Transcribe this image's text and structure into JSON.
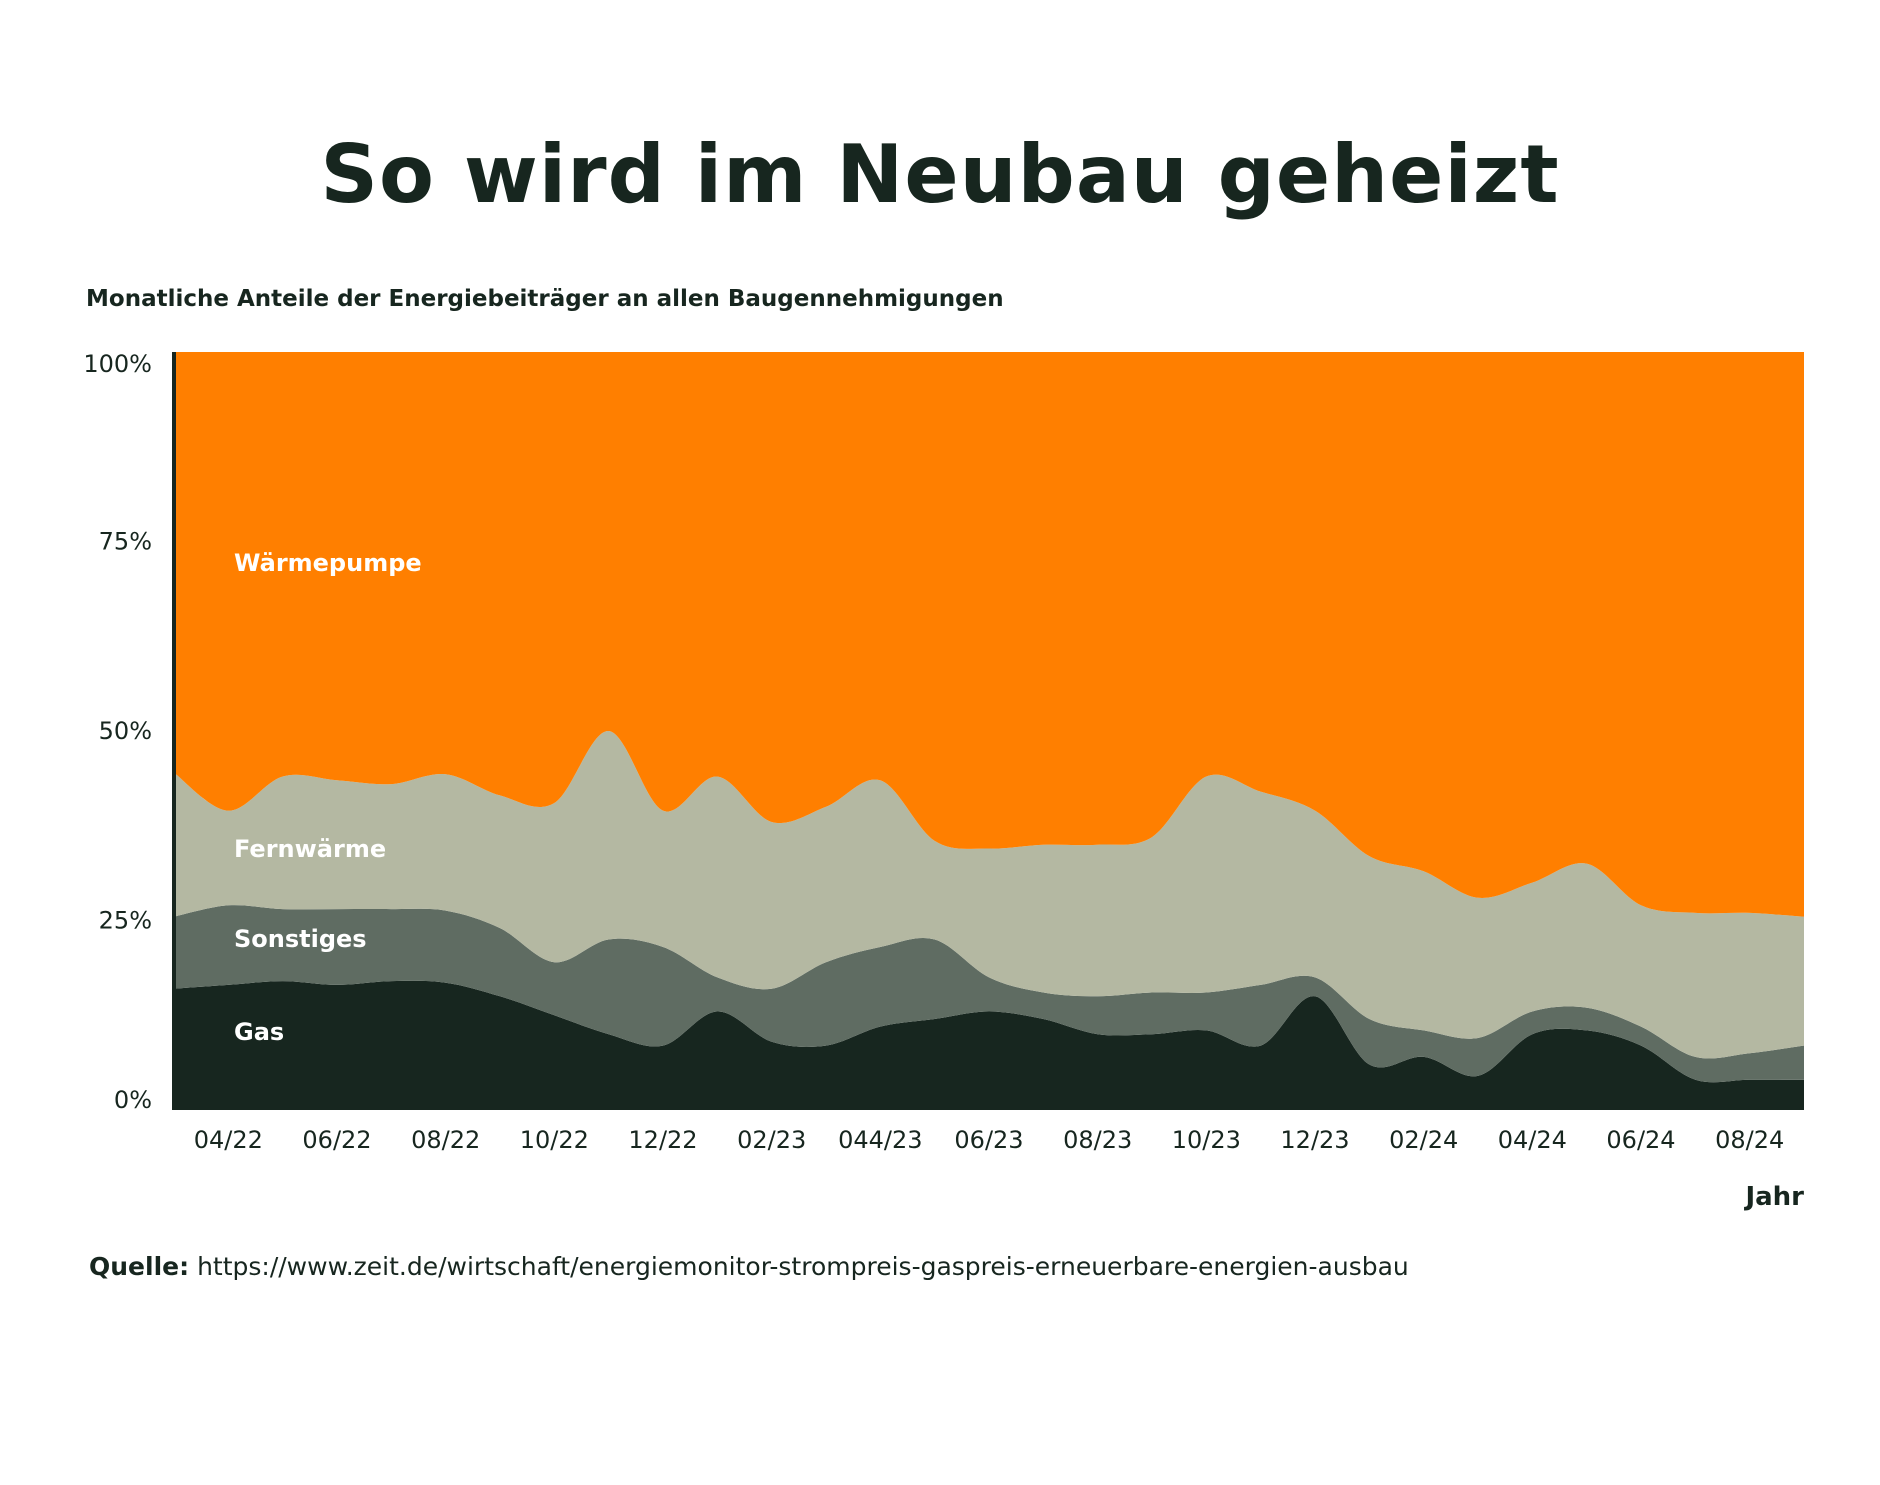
{
  "title": "So wird im Neubau geheizt",
  "subtitle": "Monatliche Anteile der Energiebeiträger an allen Baugennehmigungen",
  "source": {
    "label": "Quelle:",
    "url": "https://www.zeit.de/wirtschaft/energiemonitor-strompreis-gaspreis-erneuerbare-energien-ausbau"
  },
  "chart_data": {
    "type": "area",
    "stacked": true,
    "xlabel": "Jahr",
    "ylabel": "",
    "ylim": [
      0,
      100
    ],
    "yticks": [
      "0%",
      "25%",
      "50%",
      "75%",
      "100%"
    ],
    "xticks": [
      "04/22",
      "06/22",
      "08/22",
      "10/22",
      "12/22",
      "02/23",
      "044/23",
      "06/23",
      "08/23",
      "10/23",
      "12/23",
      "02/24",
      "04/24",
      "06/24",
      "08/24"
    ],
    "x": [
      "03/22",
      "04/22",
      "05/22",
      "06/22",
      "07/22",
      "08/22",
      "09/22",
      "10/22",
      "11/22",
      "12/22",
      "01/23",
      "02/23",
      "03/23",
      "04/23",
      "05/23",
      "06/23",
      "07/23",
      "08/23",
      "09/23",
      "10/23",
      "11/23",
      "12/23",
      "01/24",
      "02/24",
      "03/24",
      "04/24",
      "05/24",
      "06/24",
      "07/24",
      "08/24",
      "09/24"
    ],
    "series": [
      {
        "name": "Gas",
        "color": "#17261f",
        "values": [
          16,
          16.5,
          17,
          16.5,
          17,
          16.8,
          15,
          12.5,
          10,
          8.5,
          13,
          9,
          8.5,
          11,
          12,
          13,
          12,
          10,
          10,
          10.5,
          8.5,
          15,
          6,
          7,
          4.5,
          10,
          10.5,
          8.5,
          4,
          4,
          4
        ]
      },
      {
        "name": "Sonstiges",
        "color": "#5f6c62",
        "values": [
          9.5,
          10.5,
          9.5,
          10,
          9.5,
          9.5,
          9,
          7,
          12.5,
          13,
          4.5,
          7,
          11,
          10.5,
          10.5,
          4.5,
          3.5,
          5,
          5.5,
          5,
          8,
          2.5,
          6,
          3.5,
          5,
          3,
          3,
          2.5,
          3,
          3.5,
          4.5
        ]
      },
      {
        "name": "Fernwärme",
        "color": "#b4b8a2",
        "values": [
          19,
          12.5,
          17.5,
          17,
          16.5,
          18,
          17.5,
          21,
          27.5,
          18,
          26.5,
          22,
          20.5,
          22,
          13,
          17,
          19.5,
          20,
          20.5,
          28.5,
          25.5,
          22,
          21.5,
          21,
          18.5,
          17,
          19,
          16,
          19,
          18.5,
          17
        ]
      },
      {
        "name": "Wärmepumpe",
        "color": "#ff7f00",
        "values": [
          55.5,
          60.5,
          56,
          56.5,
          57,
          55.7,
          58.5,
          59.5,
          50,
          60.5,
          56,
          62,
          60,
          56.5,
          64.5,
          65.5,
          65,
          65,
          64,
          56,
          58,
          60.5,
          66.5,
          68.5,
          72,
          70,
          67.5,
          73,
          74,
          74,
          74.5
        ]
      }
    ],
    "series_labels": [
      "Wärmepumpe",
      "Fernwärme",
      "Sonstiges",
      "Gas"
    ],
    "grid": false,
    "legend": "inline labels, left"
  }
}
